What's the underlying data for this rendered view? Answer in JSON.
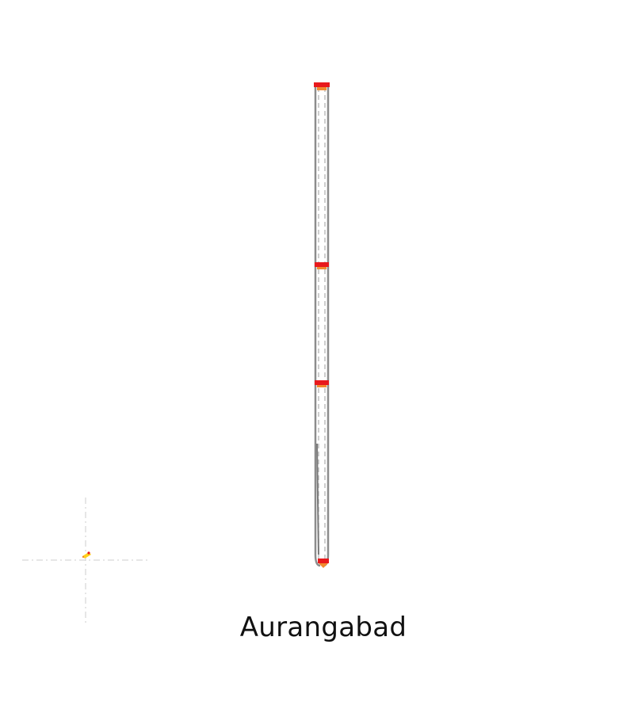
{
  "map": {
    "label": "Aurangabad",
    "colors": {
      "background": "#ffffff",
      "route_outline": "#8c8c8c",
      "route_dash": "#cfcfcf",
      "marker_red": "#e8191c",
      "marker_orange": "#f28a2e",
      "marker_yellow": "#ffd21a",
      "crosshair": "#cccccc"
    },
    "markers": [
      {
        "name": "station-top",
        "icon": "station-marker-icon"
      },
      {
        "name": "station-upper-middle",
        "icon": "station-marker-icon"
      },
      {
        "name": "station-lower-middle",
        "icon": "station-marker-icon"
      },
      {
        "name": "station-bottom",
        "icon": "station-marker-icon"
      }
    ],
    "locator": {
      "icon": "locator-crosshair-icon"
    }
  }
}
